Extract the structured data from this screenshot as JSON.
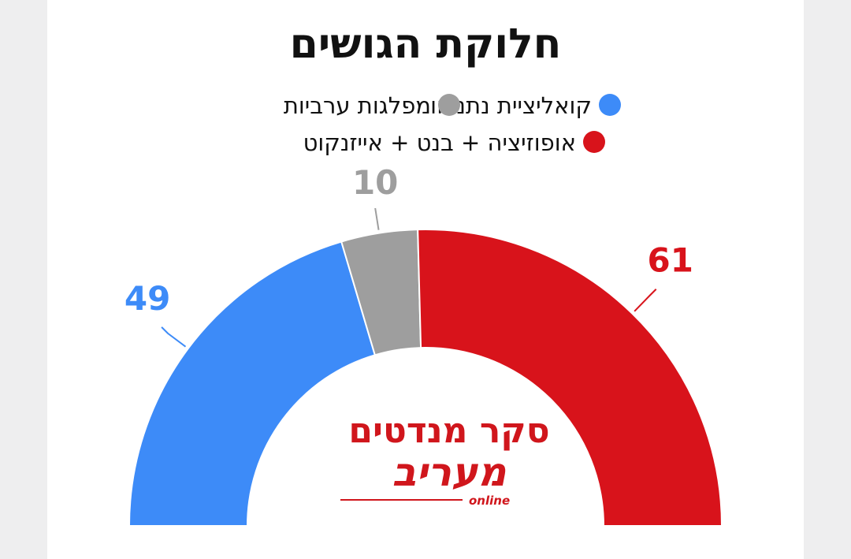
{
  "chart_data": {
    "type": "semi-donut",
    "title": "חלוקת הגושים",
    "total": 120,
    "categories": [
      "קואליציית נתניהו",
      "מפלגות ערביות",
      "אופוזיציה + בנט + אייזנקוט"
    ],
    "values": [
      49,
      10,
      61
    ],
    "colors": [
      "#3d8bf8",
      "#9e9e9e",
      "#d8131b"
    ],
    "legend": [
      {
        "label": "קואליציית נתניהו",
        "color": "#3d8bf8"
      },
      {
        "label": "מפלגות ערביות",
        "color": "#9e9e9e"
      },
      {
        "label": "אופוזיציה + בנט + אייזנקוט",
        "color": "#d8131b"
      }
    ]
  },
  "logo": {
    "line1": "סקר מנדטים",
    "brand": "מעריב",
    "sub": "online"
  }
}
